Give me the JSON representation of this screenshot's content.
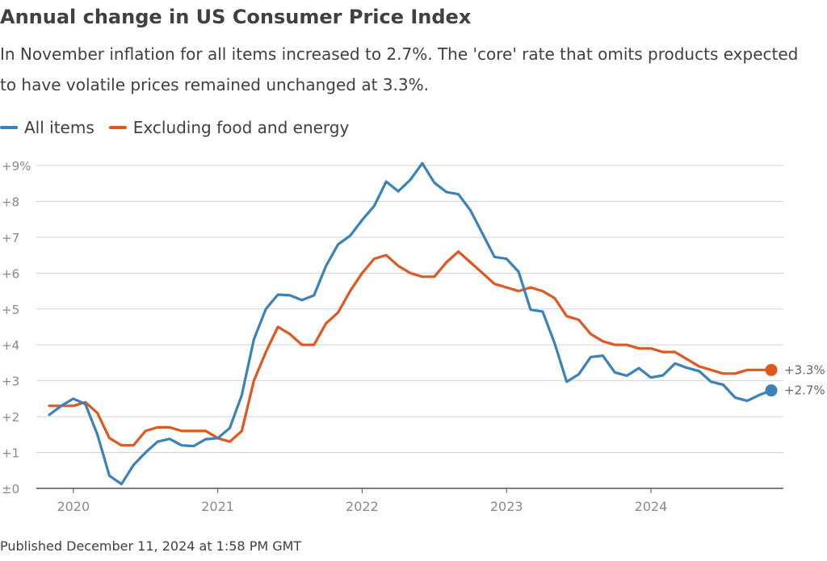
{
  "header": {
    "title": "Annual change in US Consumer Price Index",
    "subtitle": "In November inflation for all items increased to 2.7%. The 'core' rate that omits products expected to have volatile prices remained unchanged at 3.3%."
  },
  "footer": {
    "published": "Published December 11, 2024 at 1:58 PM GMT"
  },
  "colors": {
    "all_items": "#3a82b9",
    "core": "#e0571f",
    "grid": "#d3d3d3",
    "axis": "#555555",
    "tick_text": "#8a8a8a",
    "end_label": "#666666"
  },
  "chart_data": {
    "type": "line",
    "title": "Annual change in US Consumer Price Index",
    "xlabel": "",
    "ylabel": "",
    "ylim": [
      0,
      9
    ],
    "xlim": [
      "2019-11",
      "2024-11"
    ],
    "y_ticks": [
      {
        "value": 0,
        "label": "±0"
      },
      {
        "value": 1,
        "label": "+1"
      },
      {
        "value": 2,
        "label": "+2"
      },
      {
        "value": 3,
        "label": "+3"
      },
      {
        "value": 4,
        "label": "+4"
      },
      {
        "value": 5,
        "label": "+5"
      },
      {
        "value": 6,
        "label": "+6"
      },
      {
        "value": 7,
        "label": "+7"
      },
      {
        "value": 8,
        "label": "+8"
      },
      {
        "value": 9,
        "label": "+9%"
      }
    ],
    "x_ticks": [
      {
        "index": 2,
        "label": "2020"
      },
      {
        "index": 14,
        "label": "2021"
      },
      {
        "index": 26,
        "label": "2022"
      },
      {
        "index": 38,
        "label": "2023"
      },
      {
        "index": 50,
        "label": "2024"
      }
    ],
    "grid": true,
    "legend_position": "top-left",
    "series": [
      {
        "name": "All items",
        "key": "all_items",
        "end_label": "+2.7%",
        "values": [
          2.05,
          2.3,
          2.5,
          2.35,
          1.5,
          0.35,
          0.12,
          0.65,
          1.0,
          1.3,
          1.38,
          1.2,
          1.18,
          1.37,
          1.4,
          1.68,
          2.6,
          4.15,
          5.0,
          5.4,
          5.38,
          5.25,
          5.38,
          6.2,
          6.8,
          7.04,
          7.48,
          7.87,
          8.55,
          8.28,
          8.6,
          9.06,
          8.52,
          8.26,
          8.2,
          7.75,
          7.1,
          6.45,
          6.4,
          6.04,
          4.98,
          4.93,
          4.04,
          2.97,
          3.18,
          3.66,
          3.7,
          3.23,
          3.14,
          3.35,
          3.09,
          3.15,
          3.48,
          3.36,
          3.27,
          2.97,
          2.89,
          2.53,
          2.44,
          2.6,
          2.73
        ]
      },
      {
        "name": "Excluding food and energy",
        "key": "core",
        "end_label": "+3.3%",
        "values": [
          2.3,
          2.3,
          2.3,
          2.4,
          2.1,
          1.4,
          1.2,
          1.2,
          1.6,
          1.7,
          1.7,
          1.6,
          1.6,
          1.6,
          1.4,
          1.3,
          1.6,
          3.0,
          3.8,
          4.5,
          4.3,
          4.0,
          4.0,
          4.6,
          4.9,
          5.5,
          6.0,
          6.4,
          6.5,
          6.2,
          6.0,
          5.9,
          5.9,
          6.3,
          6.6,
          6.3,
          6.0,
          5.7,
          5.6,
          5.5,
          5.6,
          5.5,
          5.3,
          4.8,
          4.7,
          4.3,
          4.1,
          4.0,
          4.0,
          3.9,
          3.9,
          3.8,
          3.8,
          3.6,
          3.4,
          3.3,
          3.2,
          3.2,
          3.3,
          3.3,
          3.3
        ]
      }
    ]
  }
}
